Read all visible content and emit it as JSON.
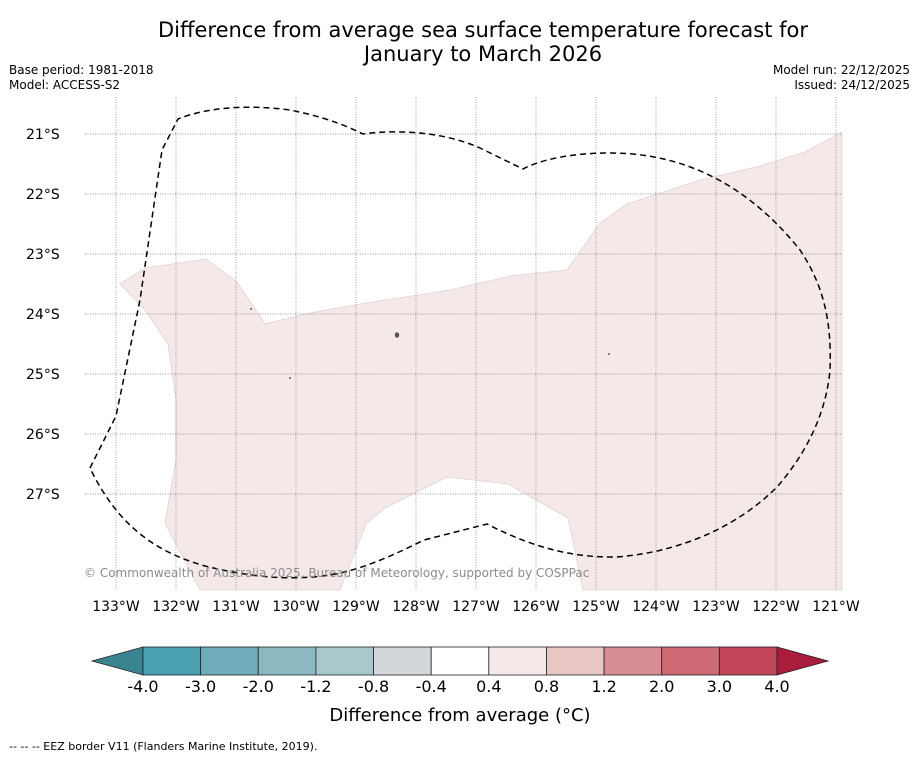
{
  "title": {
    "line1": "Difference from average sea surface temperature forecast for",
    "line2": "January to March 2026"
  },
  "meta": {
    "base_period": "Base period: 1981-2018",
    "model": "Model: ACCESS-S2",
    "model_run": "Model run: 22/12/2025",
    "issued": "Issued: 24/12/2025"
  },
  "map": {
    "lat_labels": [
      "21°S",
      "22°S",
      "23°S",
      "24°S",
      "25°S",
      "26°S",
      "27°S"
    ],
    "lon_labels": [
      "133°W",
      "132°W",
      "131°W",
      "130°W",
      "129°W",
      "128°W",
      "127°W",
      "126°W",
      "125°W",
      "124°W",
      "123°W",
      "122°W",
      "121°W"
    ],
    "copyright": "© Commonwealth of Australia 2025, Bureau of Meteorology, supported by COSPPac",
    "anomaly_fill_color": "#f4e9e8",
    "anomaly_category": "0.4 to 0.8"
  },
  "colorbar": {
    "label": "Difference from average (°C)",
    "ticks": [
      "-4.0",
      "-3.0",
      "-2.0",
      "-1.2",
      "-0.8",
      "-0.4",
      "0.4",
      "0.8",
      "1.2",
      "2.0",
      "3.0",
      "4.0"
    ],
    "colors": [
      "#4aa0b0",
      "#6eacb9",
      "#8cb8c2",
      "#a9c8cc",
      "#d2d8da",
      "#ffffff",
      "#f4e9e8",
      "#e8c6c3",
      "#d98e95",
      "#cd6a73",
      "#c04556"
    ],
    "extend_low_color": "#3a8391",
    "extend_high_color": "#aa1c3b"
  },
  "legend": {
    "eez": "--  --  -- EEZ border V11 (Flanders Marine Institute, 2019)."
  }
}
